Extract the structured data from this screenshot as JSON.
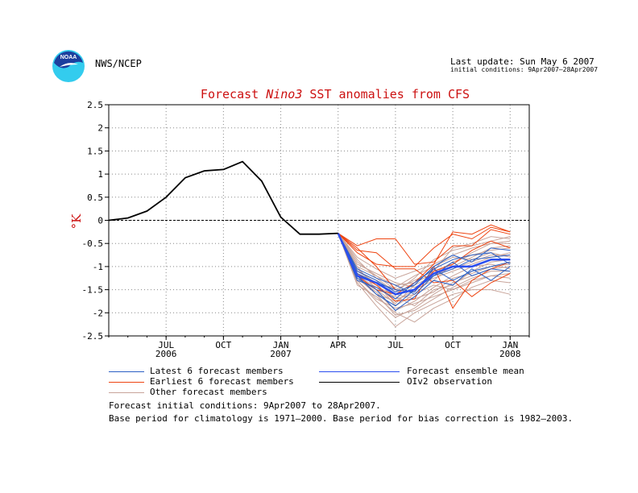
{
  "header": {
    "organization": "NWS/NCEP",
    "last_update": "Last update: Sun May 6 2007",
    "initial_conditions": "initial conditions: 9Apr2007–28Apr2007"
  },
  "legend": {
    "latest": "Latest 6 forecast members",
    "earliest": "Earliest 6 forecast members",
    "other": "Other forecast members",
    "mean": "Forecast ensemble mean",
    "obs": "OIv2 observation"
  },
  "footer": {
    "line1": "Forecast initial conditions: 9Apr2007 to 28Apr2007.",
    "line2": "Base period for climatology is 1971–2000. Base period for bias correction is 1982–2003."
  },
  "colors": {
    "latest": "#2a5fc4",
    "earliest": "#ee4411",
    "other": "#c8a49a",
    "mean": "#2a4ef0",
    "obs": "#000000",
    "title": "#cc1010",
    "logo_blue": "#1c3f9e",
    "logo_cyan": "#33ccee"
  },
  "chart_data": {
    "type": "line",
    "title_parts": [
      "Forecast ",
      "Nino3",
      "  SST anomalies from CFS"
    ],
    "ylabel": "°K",
    "ylim": [
      -2.5,
      2.5
    ],
    "yticks": [
      2.5,
      2,
      1.5,
      1,
      0.5,
      0,
      -0.5,
      -1,
      -1.5,
      -2,
      -2.5
    ],
    "ytick_labels": [
      "2.5",
      "2",
      "1.5",
      "1",
      "0.5",
      "0",
      "-0.5",
      "-1",
      "-1.5",
      "-2",
      "-2.5"
    ],
    "x_months": [
      "2006-04",
      "2006-05",
      "2006-06",
      "2006-07",
      "2006-08",
      "2006-09",
      "2006-10",
      "2006-11",
      "2006-12",
      "2007-01",
      "2007-02",
      "2007-03",
      "2007-04",
      "2007-05",
      "2007-06",
      "2007-07",
      "2007-08",
      "2007-09",
      "2007-10",
      "2007-11",
      "2007-12",
      "2008-01",
      "2008-02"
    ],
    "xticks": [
      {
        "month": "2006-07",
        "label": "JUL",
        "year": "2006"
      },
      {
        "month": "2006-10",
        "label": "OCT",
        "year": ""
      },
      {
        "month": "2007-01",
        "label": "JAN",
        "year": "2007"
      },
      {
        "month": "2007-04",
        "label": "APR",
        "year": ""
      },
      {
        "month": "2007-07",
        "label": "JUL",
        "year": ""
      },
      {
        "month": "2007-10",
        "label": "OCT",
        "year": ""
      },
      {
        "month": "2008-01",
        "label": "JAN",
        "year": "2008"
      }
    ],
    "grid": true,
    "series": [
      {
        "name": "OIv2 observation",
        "group": "obs",
        "x": [
          "2006-04",
          "2006-05",
          "2006-06",
          "2006-07",
          "2006-08",
          "2006-09",
          "2006-10",
          "2006-11",
          "2006-12",
          "2007-01",
          "2007-02",
          "2007-03",
          "2007-04"
        ],
        "values": [
          0.0,
          0.05,
          0.2,
          0.5,
          0.92,
          1.07,
          1.1,
          1.27,
          0.85,
          0.07,
          -0.3,
          -0.3,
          -0.28
        ]
      },
      {
        "name": "Forecast ensemble mean",
        "group": "mean",
        "x": [
          "2007-04",
          "2007-05",
          "2007-06",
          "2007-07",
          "2007-08",
          "2007-09",
          "2007-10",
          "2007-11",
          "2007-12",
          "2008-01"
        ],
        "values": [
          -0.28,
          -1.2,
          -1.35,
          -1.6,
          -1.5,
          -1.15,
          -1.0,
          -1.0,
          -0.85,
          -0.85
        ]
      }
    ],
    "members": [
      {
        "group": "latest",
        "x0": "2007-04",
        "values": [
          -0.28,
          -1.1,
          -1.3,
          -1.55,
          -1.4,
          -1.0,
          -0.75,
          -0.9,
          -0.6,
          -0.65
        ]
      },
      {
        "group": "latest",
        "x0": "2007-04",
        "values": [
          -0.28,
          -1.2,
          -1.6,
          -1.85,
          -1.5,
          -1.2,
          -1.05,
          -0.85,
          -0.8,
          -0.75
        ]
      },
      {
        "group": "latest",
        "x0": "2007-04",
        "values": [
          -0.28,
          -1.3,
          -1.45,
          -1.7,
          -1.35,
          -1.05,
          -1.3,
          -1.1,
          -1.0,
          -0.9
        ]
      },
      {
        "group": "latest",
        "x0": "2007-04",
        "values": [
          -0.28,
          -1.05,
          -1.25,
          -1.4,
          -1.6,
          -1.2,
          -0.9,
          -1.2,
          -1.05,
          -1.1
        ]
      },
      {
        "group": "latest",
        "x0": "2007-04",
        "values": [
          -0.28,
          -1.25,
          -1.5,
          -1.95,
          -1.65,
          -1.3,
          -1.4,
          -1.05,
          -1.3,
          -1.0
        ]
      },
      {
        "group": "latest",
        "x0": "2007-04",
        "values": [
          -0.28,
          -1.15,
          -1.35,
          -1.5,
          -1.55,
          -1.05,
          -0.85,
          -0.75,
          -0.7,
          -0.95
        ]
      },
      {
        "group": "earliest",
        "x0": "2007-04",
        "values": [
          -0.28,
          -0.55,
          -0.4,
          -0.4,
          -0.95,
          -0.9,
          -0.55,
          -0.55,
          -0.2,
          -0.3
        ]
      },
      {
        "group": "earliest",
        "x0": "2007-04",
        "values": [
          -0.28,
          -0.7,
          -0.95,
          -1.0,
          -1.0,
          -0.6,
          -0.3,
          -0.4,
          -0.15,
          -0.25
        ]
      },
      {
        "group": "earliest",
        "x0": "2007-04",
        "values": [
          -0.28,
          -0.6,
          -1.0,
          -1.5,
          -1.55,
          -1.1,
          -0.95,
          -0.65,
          -0.45,
          -0.6
        ]
      },
      {
        "group": "earliest",
        "x0": "2007-04",
        "values": [
          -0.28,
          -1.15,
          -1.4,
          -1.75,
          -1.7,
          -1.0,
          -1.9,
          -1.3,
          -1.05,
          -0.9
        ]
      },
      {
        "group": "earliest",
        "x0": "2007-04",
        "values": [
          -0.28,
          -1.2,
          -1.5,
          -1.6,
          -1.35,
          -0.95,
          -0.25,
          -0.3,
          -0.1,
          -0.25
        ]
      },
      {
        "group": "earliest",
        "x0": "2007-04",
        "values": [
          -0.28,
          -0.65,
          -0.7,
          -1.05,
          -1.05,
          -1.35,
          -1.3,
          -1.65,
          -1.35,
          -1.15
        ]
      },
      {
        "group": "other",
        "x0": "2007-04",
        "values": [
          -0.28,
          -0.9,
          -1.2,
          -1.5,
          -1.3,
          -1.1,
          -0.6,
          -0.5,
          -0.35,
          -0.4
        ]
      },
      {
        "group": "other",
        "x0": "2007-04",
        "values": [
          -0.28,
          -1.0,
          -1.5,
          -1.8,
          -1.4,
          -1.2,
          -1.0,
          -0.8,
          -0.6,
          -0.55
        ]
      },
      {
        "group": "other",
        "x0": "2007-04",
        "values": [
          -0.28,
          -1.3,
          -1.75,
          -2.1,
          -1.9,
          -1.6,
          -1.35,
          -1.2,
          -1.05,
          -1.0
        ]
      },
      {
        "group": "other",
        "x0": "2007-04",
        "values": [
          -0.28,
          -1.1,
          -1.3,
          -1.7,
          -1.6,
          -1.4,
          -1.5,
          -1.3,
          -1.2,
          -1.25
        ]
      },
      {
        "group": "other",
        "x0": "2007-04",
        "values": [
          -0.28,
          -0.8,
          -1.05,
          -1.25,
          -1.1,
          -0.95,
          -0.75,
          -0.6,
          -0.5,
          -0.45
        ]
      },
      {
        "group": "other",
        "x0": "2007-04",
        "values": [
          -0.28,
          -1.35,
          -1.85,
          -2.3,
          -2.0,
          -1.8,
          -1.6,
          -1.5,
          -1.5,
          -1.6
        ]
      },
      {
        "group": "other",
        "x0": "2007-04",
        "values": [
          -0.28,
          -1.2,
          -1.5,
          -1.65,
          -1.85,
          -1.5,
          -1.4,
          -1.1,
          -0.9,
          -0.85
        ]
      },
      {
        "group": "other",
        "x0": "2007-04",
        "values": [
          -0.28,
          -1.05,
          -1.4,
          -1.45,
          -1.2,
          -1.0,
          -0.8,
          -0.85,
          -0.7,
          -0.8
        ]
      },
      {
        "group": "other",
        "x0": "2007-04",
        "values": [
          -0.28,
          -1.25,
          -1.55,
          -1.95,
          -1.75,
          -1.45,
          -1.2,
          -1.0,
          -0.95,
          -1.05
        ]
      },
      {
        "group": "other",
        "x0": "2007-04",
        "values": [
          -0.28,
          -0.95,
          -1.15,
          -1.35,
          -1.45,
          -1.25,
          -1.1,
          -0.95,
          -0.8,
          -0.7
        ]
      },
      {
        "group": "other",
        "x0": "2007-04",
        "values": [
          -0.28,
          -1.15,
          -1.6,
          -1.75,
          -1.5,
          -1.3,
          -0.95,
          -0.7,
          -0.5,
          -0.5
        ]
      },
      {
        "group": "other",
        "x0": "2007-04",
        "values": [
          -0.28,
          -1.4,
          -1.65,
          -2.0,
          -2.2,
          -1.9,
          -1.7,
          -1.45,
          -1.3,
          -1.35
        ]
      },
      {
        "group": "other",
        "x0": "2007-04",
        "values": [
          -0.28,
          -0.85,
          -1.25,
          -1.55,
          -1.25,
          -0.85,
          -0.65,
          -0.55,
          -0.45,
          -0.35
        ]
      },
      {
        "group": "other",
        "x0": "2007-04",
        "values": [
          -0.28,
          -1.2,
          -1.45,
          -1.6,
          -1.7,
          -1.55,
          -1.25,
          -1.15,
          -1.0,
          -0.95
        ]
      },
      {
        "group": "other",
        "x0": "2007-04",
        "values": [
          -0.28,
          -1.1,
          -1.35,
          -1.85,
          -1.6,
          -1.2,
          -1.05,
          -0.9,
          -0.75,
          -0.75
        ]
      },
      {
        "group": "other",
        "x0": "2007-04",
        "values": [
          -0.28,
          -1.3,
          -1.7,
          -1.9,
          -1.8,
          -1.65,
          -1.5,
          -1.35,
          -1.2,
          -1.15
        ]
      },
      {
        "group": "other",
        "x0": "2007-04",
        "values": [
          -0.28,
          -1.0,
          -1.2,
          -1.4,
          -1.35,
          -1.15,
          -0.9,
          -0.75,
          -0.65,
          -0.6
        ]
      },
      {
        "group": "other",
        "x0": "2007-04",
        "values": [
          -0.28,
          -1.25,
          -1.6,
          -2.05,
          -1.95,
          -1.7,
          -1.45,
          -1.25,
          -1.1,
          -1.1
        ]
      }
    ]
  }
}
